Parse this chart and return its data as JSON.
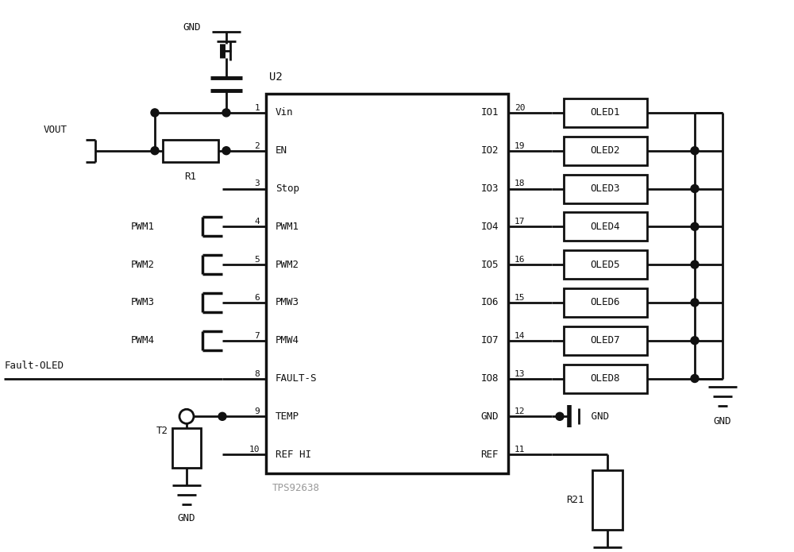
{
  "bg_color": "#ffffff",
  "line_color": "#111111",
  "text_color": "#111111",
  "gray_text_color": "#999999",
  "left_pins": [
    {
      "num": "1",
      "name": "Vin"
    },
    {
      "num": "2",
      "name": "EN"
    },
    {
      "num": "3",
      "name": "Stop"
    },
    {
      "num": "4",
      "name": "PWM1"
    },
    {
      "num": "5",
      "name": "PWM2"
    },
    {
      "num": "6",
      "name": "PMW3"
    },
    {
      "num": "7",
      "name": "PMW4"
    },
    {
      "num": "8",
      "name": "FAULT-S"
    },
    {
      "num": "9",
      "name": "TEMP"
    },
    {
      "num": "10",
      "name": "REF HI"
    }
  ],
  "right_pins": [
    {
      "num": "20",
      "name": "IO1"
    },
    {
      "num": "19",
      "name": "IO2"
    },
    {
      "num": "18",
      "name": "IO3"
    },
    {
      "num": "17",
      "name": "IO4"
    },
    {
      "num": "16",
      "name": "IO5"
    },
    {
      "num": "15",
      "name": "IO6"
    },
    {
      "num": "14",
      "name": "IO7"
    },
    {
      "num": "13",
      "name": "IO8"
    },
    {
      "num": "12",
      "name": "GND"
    },
    {
      "num": "11",
      "name": "REF"
    }
  ],
  "led_labels": [
    "OLED1",
    "OLED2",
    "OLED3",
    "OLED4",
    "OLED5",
    "OLED6",
    "OLED7",
    "OLED8"
  ],
  "pwm_labels": [
    "PWM1",
    "PWM2",
    "PWM3",
    "PWM4"
  ],
  "ic_label": "U2",
  "ic_chip_label": "TPS92638",
  "vout_label": "VOUT",
  "r1_label": "R1",
  "r21_label": "R21",
  "t2_label": "T2",
  "gnd_label": "GND",
  "fault_label": "Fault-OLED"
}
